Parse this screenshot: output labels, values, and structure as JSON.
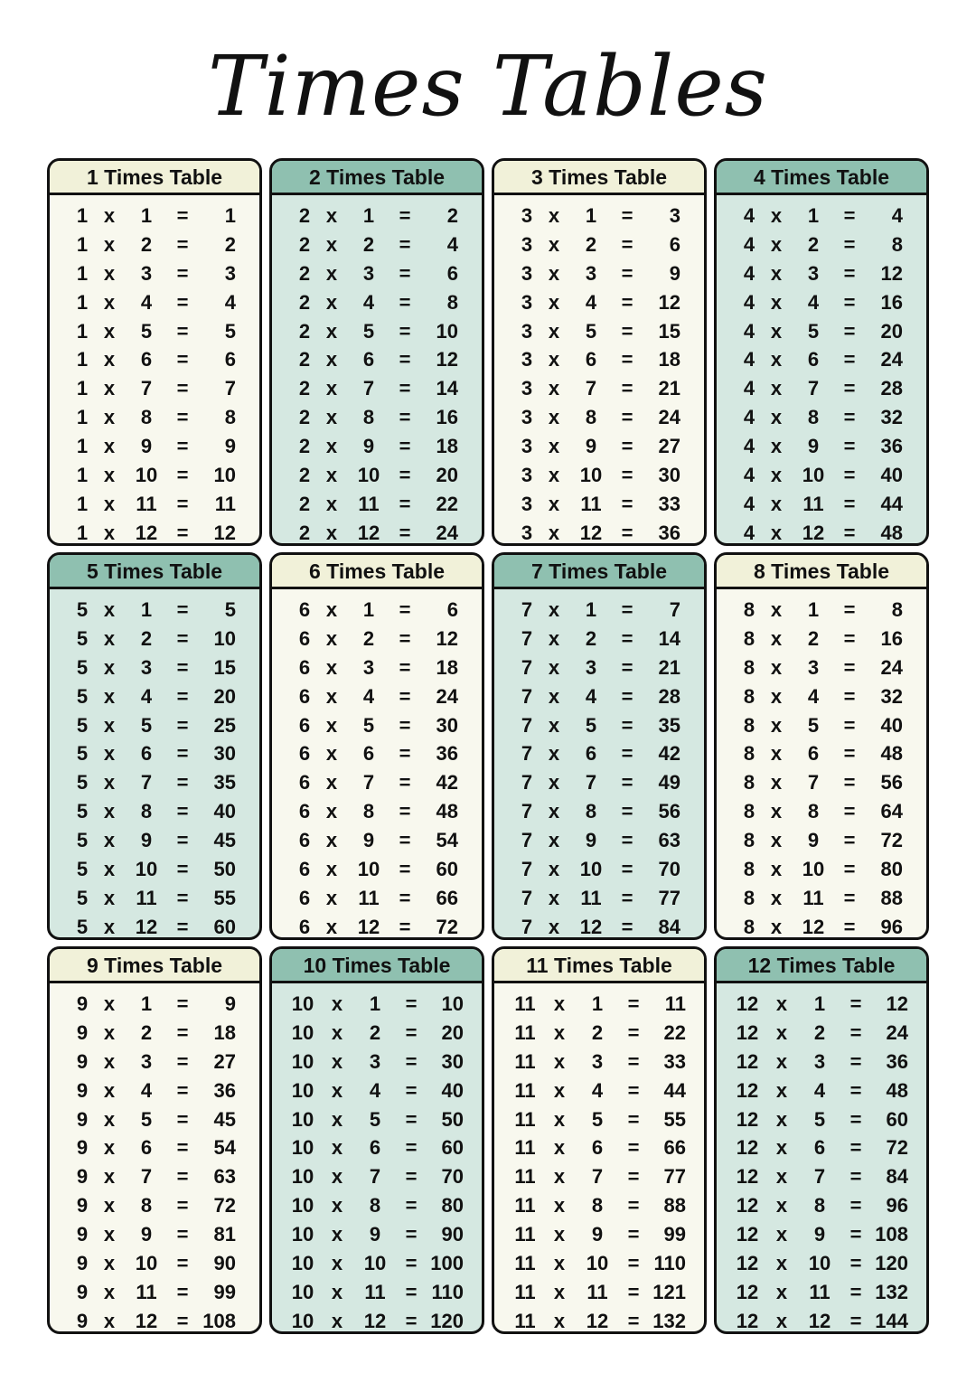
{
  "title": "Times Tables",
  "times_symbol": "x",
  "equals_symbol": "=",
  "colors": {
    "cream_header": "#f1f1d9",
    "cream_body": "#f8f8ee",
    "teal_header": "#8fc0b0",
    "teal_body": "#d5e8e1"
  },
  "tables": [
    {
      "title": "1 Times Table",
      "theme": "cream",
      "rows": [
        [
          1,
          1,
          1
        ],
        [
          1,
          2,
          2
        ],
        [
          1,
          3,
          3
        ],
        [
          1,
          4,
          4
        ],
        [
          1,
          5,
          5
        ],
        [
          1,
          6,
          6
        ],
        [
          1,
          7,
          7
        ],
        [
          1,
          8,
          8
        ],
        [
          1,
          9,
          9
        ],
        [
          1,
          10,
          10
        ],
        [
          1,
          11,
          11
        ],
        [
          1,
          12,
          12
        ]
      ]
    },
    {
      "title": "2 Times Table",
      "theme": "teal",
      "rows": [
        [
          2,
          1,
          2
        ],
        [
          2,
          2,
          4
        ],
        [
          2,
          3,
          6
        ],
        [
          2,
          4,
          8
        ],
        [
          2,
          5,
          10
        ],
        [
          2,
          6,
          12
        ],
        [
          2,
          7,
          14
        ],
        [
          2,
          8,
          16
        ],
        [
          2,
          9,
          18
        ],
        [
          2,
          10,
          20
        ],
        [
          2,
          11,
          22
        ],
        [
          2,
          12,
          24
        ]
      ]
    },
    {
      "title": "3 Times Table",
      "theme": "cream",
      "rows": [
        [
          3,
          1,
          3
        ],
        [
          3,
          2,
          6
        ],
        [
          3,
          3,
          9
        ],
        [
          3,
          4,
          12
        ],
        [
          3,
          5,
          15
        ],
        [
          3,
          6,
          18
        ],
        [
          3,
          7,
          21
        ],
        [
          3,
          8,
          24
        ],
        [
          3,
          9,
          27
        ],
        [
          3,
          10,
          30
        ],
        [
          3,
          11,
          33
        ],
        [
          3,
          12,
          36
        ]
      ]
    },
    {
      "title": "4 Times Table",
      "theme": "teal",
      "rows": [
        [
          4,
          1,
          4
        ],
        [
          4,
          2,
          8
        ],
        [
          4,
          3,
          12
        ],
        [
          4,
          4,
          16
        ],
        [
          4,
          5,
          20
        ],
        [
          4,
          6,
          24
        ],
        [
          4,
          7,
          28
        ],
        [
          4,
          8,
          32
        ],
        [
          4,
          9,
          36
        ],
        [
          4,
          10,
          40
        ],
        [
          4,
          11,
          44
        ],
        [
          4,
          12,
          48
        ]
      ]
    },
    {
      "title": "5 Times Table",
      "theme": "teal",
      "rows": [
        [
          5,
          1,
          5
        ],
        [
          5,
          2,
          10
        ],
        [
          5,
          3,
          15
        ],
        [
          5,
          4,
          20
        ],
        [
          5,
          5,
          25
        ],
        [
          5,
          6,
          30
        ],
        [
          5,
          7,
          35
        ],
        [
          5,
          8,
          40
        ],
        [
          5,
          9,
          45
        ],
        [
          5,
          10,
          50
        ],
        [
          5,
          11,
          55
        ],
        [
          5,
          12,
          60
        ]
      ]
    },
    {
      "title": "6 Times Table",
      "theme": "cream",
      "rows": [
        [
          6,
          1,
          6
        ],
        [
          6,
          2,
          12
        ],
        [
          6,
          3,
          18
        ],
        [
          6,
          4,
          24
        ],
        [
          6,
          5,
          30
        ],
        [
          6,
          6,
          36
        ],
        [
          6,
          7,
          42
        ],
        [
          6,
          8,
          48
        ],
        [
          6,
          9,
          54
        ],
        [
          6,
          10,
          60
        ],
        [
          6,
          11,
          66
        ],
        [
          6,
          12,
          72
        ]
      ]
    },
    {
      "title": "7 Times Table",
      "theme": "teal",
      "rows": [
        [
          7,
          1,
          7
        ],
        [
          7,
          2,
          14
        ],
        [
          7,
          3,
          21
        ],
        [
          7,
          4,
          28
        ],
        [
          7,
          5,
          35
        ],
        [
          7,
          6,
          42
        ],
        [
          7,
          7,
          49
        ],
        [
          7,
          8,
          56
        ],
        [
          7,
          9,
          63
        ],
        [
          7,
          10,
          70
        ],
        [
          7,
          11,
          77
        ],
        [
          7,
          12,
          84
        ]
      ]
    },
    {
      "title": "8 Times Table",
      "theme": "cream",
      "rows": [
        [
          8,
          1,
          8
        ],
        [
          8,
          2,
          16
        ],
        [
          8,
          3,
          24
        ],
        [
          8,
          4,
          32
        ],
        [
          8,
          5,
          40
        ],
        [
          8,
          6,
          48
        ],
        [
          8,
          7,
          56
        ],
        [
          8,
          8,
          64
        ],
        [
          8,
          9,
          72
        ],
        [
          8,
          10,
          80
        ],
        [
          8,
          11,
          88
        ],
        [
          8,
          12,
          96
        ]
      ]
    },
    {
      "title": "9 Times Table",
      "theme": "cream",
      "rows": [
        [
          9,
          1,
          9
        ],
        [
          9,
          2,
          18
        ],
        [
          9,
          3,
          27
        ],
        [
          9,
          4,
          36
        ],
        [
          9,
          5,
          45
        ],
        [
          9,
          6,
          54
        ],
        [
          9,
          7,
          63
        ],
        [
          9,
          8,
          72
        ],
        [
          9,
          9,
          81
        ],
        [
          9,
          10,
          90
        ],
        [
          9,
          11,
          99
        ],
        [
          9,
          12,
          108
        ]
      ]
    },
    {
      "title": "10 Times Table",
      "theme": "teal",
      "rows": [
        [
          10,
          1,
          10
        ],
        [
          10,
          2,
          20
        ],
        [
          10,
          3,
          30
        ],
        [
          10,
          4,
          40
        ],
        [
          10,
          5,
          50
        ],
        [
          10,
          6,
          60
        ],
        [
          10,
          7,
          70
        ],
        [
          10,
          8,
          80
        ],
        [
          10,
          9,
          90
        ],
        [
          10,
          10,
          100
        ],
        [
          10,
          11,
          110
        ],
        [
          10,
          12,
          120
        ]
      ]
    },
    {
      "title": "11 Times Table",
      "theme": "cream",
      "rows": [
        [
          11,
          1,
          11
        ],
        [
          11,
          2,
          22
        ],
        [
          11,
          3,
          33
        ],
        [
          11,
          4,
          44
        ],
        [
          11,
          5,
          55
        ],
        [
          11,
          6,
          66
        ],
        [
          11,
          7,
          77
        ],
        [
          11,
          8,
          88
        ],
        [
          11,
          9,
          99
        ],
        [
          11,
          10,
          110
        ],
        [
          11,
          11,
          121
        ],
        [
          11,
          12,
          132
        ]
      ]
    },
    {
      "title": "12 Times Table",
      "theme": "teal",
      "rows": [
        [
          12,
          1,
          12
        ],
        [
          12,
          2,
          24
        ],
        [
          12,
          3,
          36
        ],
        [
          12,
          4,
          48
        ],
        [
          12,
          5,
          60
        ],
        [
          12,
          6,
          72
        ],
        [
          12,
          7,
          84
        ],
        [
          12,
          8,
          96
        ],
        [
          12,
          9,
          108
        ],
        [
          12,
          10,
          120
        ],
        [
          12,
          11,
          132
        ],
        [
          12,
          12,
          144
        ]
      ]
    }
  ]
}
